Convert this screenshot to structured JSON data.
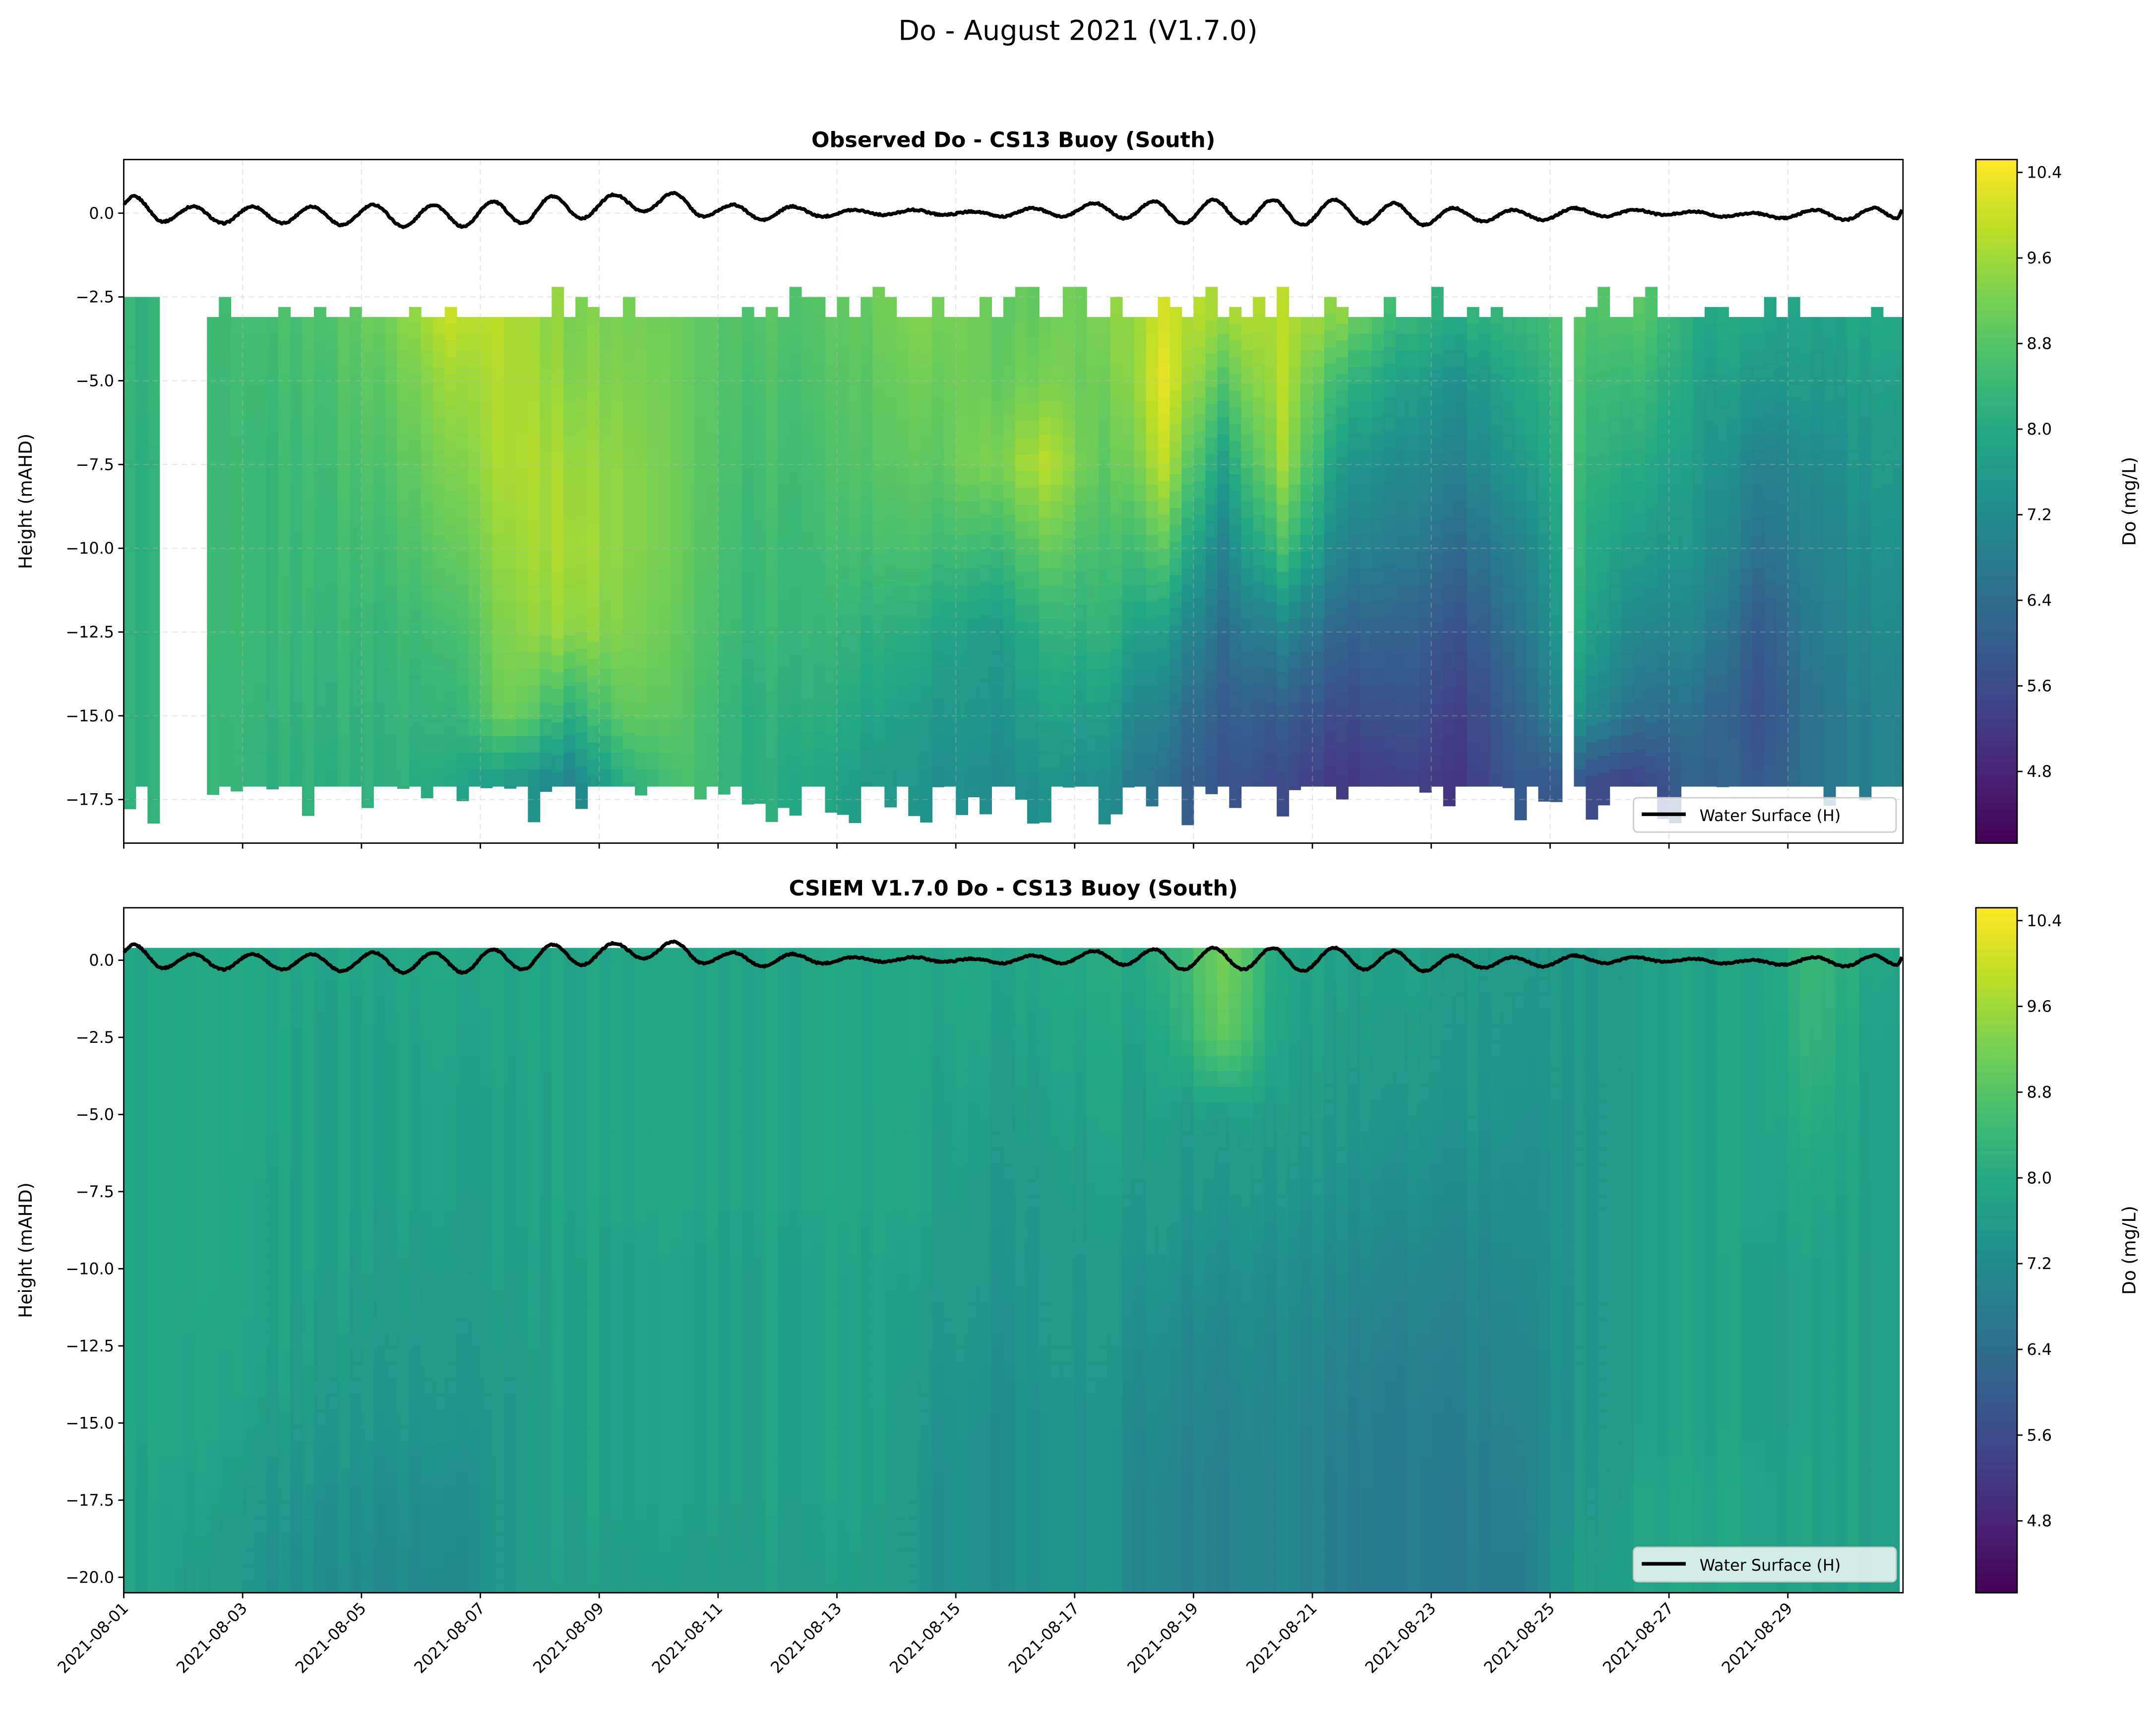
{
  "figure_title": "Do - August 2021 (V1.7.0)",
  "colormap": "viridis",
  "chart_data": [
    {
      "type": "heatmap",
      "title": "Observed Do - CS13 Buoy (South)",
      "ylabel": "Height (mAHD)",
      "xlabel": "",
      "colorbar_label": "Do (mg/L)",
      "colorbar_ticks": [
        "4.8",
        "5.6",
        "6.4",
        "7.2",
        "8.0",
        "8.8",
        "9.6",
        "10.4"
      ],
      "clim": [
        4.13,
        10.52
      ],
      "xlim": [
        "2021-08-01 00:00",
        "2021-08-30 22:30"
      ],
      "ylim": [
        -18.8,
        1.6
      ],
      "yticks": [
        "0.0",
        "-2.5",
        "-5.0",
        "-7.5",
        "-10.0",
        "-12.5",
        "-15.0",
        "-17.5"
      ],
      "grid": true,
      "legend": {
        "label": "Water Surface (H)",
        "placement": "lower-right"
      },
      "data_depth_range": [
        -17.1,
        -3.1
      ],
      "gaps": [
        [
          "2021-08-01 15:30",
          "2021-08-02 11:00"
        ],
        [
          "2021-08-25 05:00",
          "2021-08-25 10:00"
        ]
      ],
      "depths": [
        -3,
        -5,
        -7.5,
        -10,
        -12.5,
        -15,
        -17
      ],
      "days": [
        "2021-08-01",
        "2021-08-02",
        "2021-08-03",
        "2021-08-04",
        "2021-08-05",
        "2021-08-06",
        "2021-08-07",
        "2021-08-08",
        "2021-08-09",
        "2021-08-10",
        "2021-08-11",
        "2021-08-12",
        "2021-08-13",
        "2021-08-14",
        "2021-08-15",
        "2021-08-16",
        "2021-08-17",
        "2021-08-18",
        "2021-08-19",
        "2021-08-20",
        "2021-08-21",
        "2021-08-22",
        "2021-08-23",
        "2021-08-24",
        "2021-08-25",
        "2021-08-26",
        "2021-08-27",
        "2021-08-28",
        "2021-08-29",
        "2021-08-30"
      ],
      "values": [
        [
          8.3,
          8.3,
          8.2,
          8.2,
          8.2,
          8.2,
          8.2
        ],
        [
          8.4,
          8.4,
          8.4,
          8.4,
          8.4,
          8.3,
          8.3
        ],
        [
          8.6,
          8.5,
          8.4,
          8.4,
          8.4,
          8.3,
          8.2
        ],
        [
          8.8,
          8.7,
          8.6,
          8.5,
          8.4,
          8.3,
          8.2
        ],
        [
          9.2,
          9.0,
          8.8,
          8.6,
          8.4,
          8.3,
          8.2
        ],
        [
          10.0,
          9.6,
          9.3,
          9.0,
          8.6,
          8.3,
          8.0
        ],
        [
          9.8,
          9.8,
          9.8,
          9.6,
          9.4,
          9.2,
          7.6
        ],
        [
          9.3,
          9.4,
          9.6,
          9.7,
          9.5,
          8.2,
          7.0
        ],
        [
          9.2,
          9.3,
          9.4,
          9.4,
          9.3,
          9.0,
          8.2
        ],
        [
          9.0,
          9.0,
          9.0,
          9.0,
          8.9,
          8.8,
          8.7
        ],
        [
          8.8,
          8.7,
          8.6,
          8.5,
          8.4,
          8.2,
          8.2
        ],
        [
          8.8,
          8.7,
          8.6,
          8.5,
          8.4,
          8.2,
          8.0
        ],
        [
          9.0,
          8.9,
          8.8,
          8.6,
          8.2,
          7.9,
          7.6
        ],
        [
          9.3,
          9.1,
          8.9,
          8.6,
          8.0,
          7.6,
          7.4
        ],
        [
          9.0,
          9.0,
          9.2,
          8.4,
          7.6,
          7.4,
          7.2
        ],
        [
          9.0,
          9.2,
          9.8,
          9.0,
          8.2,
          7.8,
          7.4
        ],
        [
          9.2,
          9.0,
          8.8,
          8.5,
          8.2,
          7.6,
          7.2
        ],
        [
          10.0,
          10.2,
          9.8,
          8.8,
          7.6,
          6.8,
          6.4
        ],
        [
          9.6,
          8.8,
          7.8,
          7.0,
          6.4,
          6.0,
          5.8
        ],
        [
          9.8,
          9.8,
          9.6,
          8.6,
          7.0,
          6.0,
          5.6
        ],
        [
          9.4,
          8.4,
          7.6,
          7.0,
          6.2,
          5.6,
          5.2
        ],
        [
          8.4,
          7.8,
          7.2,
          6.8,
          6.2,
          5.8,
          5.4
        ],
        [
          8.2,
          7.4,
          7.0,
          6.4,
          5.8,
          5.4,
          5.2
        ],
        [
          8.4,
          8.0,
          7.6,
          7.0,
          6.6,
          6.2,
          6.0
        ],
        [
          8.8,
          8.6,
          8.4,
          8.2,
          8.0,
          7.4,
          5.8
        ],
        [
          8.8,
          8.4,
          8.0,
          7.6,
          7.0,
          6.4,
          5.4
        ],
        [
          8.0,
          7.8,
          7.6,
          7.4,
          7.0,
          6.4,
          6.2
        ],
        [
          8.0,
          7.6,
          7.0,
          6.6,
          6.0,
          5.8,
          6.0
        ],
        [
          7.8,
          7.6,
          7.2,
          7.0,
          6.8,
          6.6,
          6.6
        ],
        [
          8.0,
          7.8,
          7.6,
          7.4,
          7.2,
          7.0,
          7.0
        ]
      ]
    },
    {
      "type": "heatmap",
      "title": "CSIEM V1.7.0 Do - CS13 Buoy (South)",
      "ylabel": "Height (mAHD)",
      "xlabel": "",
      "colorbar_label": "Do (mg/L)",
      "colorbar_ticks": [
        "4.8",
        "5.6",
        "6.4",
        "7.2",
        "8.0",
        "8.8",
        "9.6",
        "10.4"
      ],
      "clim": [
        4.13,
        10.52
      ],
      "xlim": [
        "2021-08-01 00:00",
        "2021-08-30 22:30"
      ],
      "ylim": [
        -20.5,
        1.7
      ],
      "yticks": [
        "0.0",
        "-2.5",
        "-5.0",
        "-7.5",
        "-10.0",
        "-12.5",
        "-15.0",
        "-17.5",
        "-20.0"
      ],
      "xticks": [
        "2021-08-01",
        "2021-08-03",
        "2021-08-05",
        "2021-08-07",
        "2021-08-09",
        "2021-08-11",
        "2021-08-13",
        "2021-08-15",
        "2021-08-17",
        "2021-08-19",
        "2021-08-21",
        "2021-08-23",
        "2021-08-25",
        "2021-08-27",
        "2021-08-29"
      ],
      "grid": false,
      "legend": {
        "label": "Water Surface (H)",
        "placement": "lower-right"
      },
      "data_time_end": "2021-08-30 21:00",
      "depths": [
        0,
        -2.5,
        -5,
        -7.5,
        -10,
        -12.5,
        -15,
        -17.5,
        -20
      ],
      "days": [
        "2021-08-01",
        "2021-08-02",
        "2021-08-03",
        "2021-08-04",
        "2021-08-05",
        "2021-08-06",
        "2021-08-07",
        "2021-08-08",
        "2021-08-09",
        "2021-08-10",
        "2021-08-11",
        "2021-08-12",
        "2021-08-13",
        "2021-08-14",
        "2021-08-15",
        "2021-08-16",
        "2021-08-17",
        "2021-08-18",
        "2021-08-19",
        "2021-08-20",
        "2021-08-21",
        "2021-08-22",
        "2021-08-23",
        "2021-08-24",
        "2021-08-25",
        "2021-08-26",
        "2021-08-27",
        "2021-08-28",
        "2021-08-29",
        "2021-08-30"
      ],
      "values": [
        [
          7.9,
          7.9,
          7.9,
          7.9,
          7.9,
          7.9,
          7.9,
          7.8,
          7.8
        ],
        [
          7.9,
          7.9,
          7.9,
          7.9,
          7.9,
          7.8,
          7.8,
          7.7,
          7.6
        ],
        [
          7.9,
          7.9,
          7.9,
          7.8,
          7.8,
          7.8,
          7.7,
          7.5,
          7.4
        ],
        [
          7.9,
          7.8,
          7.8,
          7.8,
          7.8,
          7.7,
          7.6,
          7.4,
          7.3
        ],
        [
          7.9,
          7.8,
          7.8,
          7.8,
          7.7,
          7.6,
          7.5,
          7.3,
          7.2
        ],
        [
          8.0,
          7.9,
          7.8,
          7.8,
          7.7,
          7.6,
          7.5,
          7.3,
          7.2
        ],
        [
          7.9,
          7.9,
          7.8,
          7.8,
          7.8,
          7.7,
          7.6,
          7.6,
          7.6
        ],
        [
          7.9,
          7.9,
          7.9,
          7.9,
          7.8,
          7.8,
          7.8,
          7.8,
          7.7
        ],
        [
          7.9,
          7.9,
          7.9,
          7.9,
          7.8,
          7.8,
          7.8,
          7.8,
          7.7
        ],
        [
          7.9,
          7.9,
          7.9,
          7.9,
          7.8,
          7.8,
          7.8,
          7.8,
          7.7
        ],
        [
          7.9,
          7.9,
          7.9,
          7.9,
          7.8,
          7.8,
          7.8,
          7.8,
          7.7
        ],
        [
          7.9,
          7.9,
          7.9,
          7.9,
          7.8,
          7.8,
          7.8,
          7.8,
          7.7
        ],
        [
          7.9,
          7.9,
          7.9,
          7.9,
          7.8,
          7.8,
          7.8,
          7.8,
          7.7
        ],
        [
          7.9,
          7.9,
          7.8,
          7.8,
          7.7,
          7.6,
          7.5,
          7.4,
          7.4
        ],
        [
          7.9,
          7.8,
          7.7,
          7.6,
          7.5,
          7.4,
          7.3,
          7.3,
          7.3
        ],
        [
          7.9,
          7.8,
          7.7,
          7.6,
          7.5,
          7.5,
          7.4,
          7.4,
          7.4
        ],
        [
          8.0,
          7.9,
          7.8,
          7.7,
          7.6,
          7.5,
          7.4,
          7.4,
          7.4
        ],
        [
          8.1,
          7.9,
          7.7,
          7.6,
          7.4,
          7.2,
          7.1,
          7.0,
          7.0
        ],
        [
          9.2,
          9.0,
          7.7,
          7.5,
          7.3,
          7.1,
          7.0,
          6.9,
          6.9
        ],
        [
          7.9,
          7.8,
          7.7,
          7.5,
          7.3,
          7.2,
          7.1,
          7.1,
          7.1
        ],
        [
          7.8,
          7.7,
          7.6,
          7.4,
          7.2,
          7.0,
          6.9,
          6.8,
          6.8
        ],
        [
          7.8,
          7.7,
          7.5,
          7.3,
          7.1,
          6.9,
          6.8,
          6.8,
          6.8
        ],
        [
          7.7,
          7.6,
          7.5,
          7.3,
          7.1,
          7.0,
          6.9,
          6.8,
          6.8
        ],
        [
          7.6,
          7.5,
          7.4,
          7.3,
          7.2,
          7.1,
          7.0,
          6.9,
          6.8
        ],
        [
          7.6,
          7.6,
          7.5,
          7.5,
          7.5,
          7.5,
          7.5,
          7.6,
          7.7
        ],
        [
          7.7,
          7.7,
          7.7,
          7.7,
          7.7,
          7.7,
          7.7,
          7.8,
          7.8
        ],
        [
          7.8,
          7.8,
          7.8,
          7.8,
          7.8,
          7.8,
          7.8,
          7.9,
          7.9
        ],
        [
          7.9,
          7.9,
          7.9,
          7.9,
          7.8,
          7.8,
          7.8,
          7.9,
          7.9
        ],
        [
          8.4,
          8.3,
          8.1,
          7.9,
          7.8,
          7.8,
          7.8,
          7.8,
          7.8
        ],
        [
          7.9,
          7.8,
          7.8,
          7.8,
          7.8,
          7.8,
          7.8,
          7.8,
          7.8
        ]
      ]
    }
  ],
  "water_surface": {
    "name": "Water Surface (H)",
    "color": "#000000",
    "points": [
      [
        "2021-08-01 00:00",
        0.3
      ],
      [
        "2021-08-01 04:00",
        0.5
      ],
      [
        "2021-08-01 16:00",
        -0.25
      ],
      [
        "2021-08-02 04:00",
        0.2
      ],
      [
        "2021-08-02 16:00",
        -0.3
      ],
      [
        "2021-08-03 04:00",
        0.2
      ],
      [
        "2021-08-03 16:00",
        -0.3
      ],
      [
        "2021-08-04 04:00",
        0.2
      ],
      [
        "2021-08-04 16:00",
        -0.35
      ],
      [
        "2021-08-05 05:00",
        0.25
      ],
      [
        "2021-08-05 17:00",
        -0.4
      ],
      [
        "2021-08-06 05:00",
        0.25
      ],
      [
        "2021-08-06 17:00",
        -0.4
      ],
      [
        "2021-08-07 05:00",
        0.35
      ],
      [
        "2021-08-07 17:00",
        -0.3
      ],
      [
        "2021-08-08 05:00",
        0.5
      ],
      [
        "2021-08-08 17:00",
        -0.15
      ],
      [
        "2021-08-09 06:00",
        0.55
      ],
      [
        "2021-08-09 18:00",
        0.05
      ],
      [
        "2021-08-10 06:00",
        0.6
      ],
      [
        "2021-08-10 18:00",
        -0.1
      ],
      [
        "2021-08-11 06:00",
        0.25
      ],
      [
        "2021-08-11 18:00",
        -0.2
      ],
      [
        "2021-08-12 06:00",
        0.2
      ],
      [
        "2021-08-12 18:00",
        -0.1
      ],
      [
        "2021-08-13 07:00",
        0.1
      ],
      [
        "2021-08-13 19:00",
        -0.05
      ],
      [
        "2021-08-14 07:00",
        0.1
      ],
      [
        "2021-08-14 19:00",
        -0.05
      ],
      [
        "2021-08-15 07:00",
        0.05
      ],
      [
        "2021-08-15 19:00",
        -0.1
      ],
      [
        "2021-08-16 07:00",
        0.15
      ],
      [
        "2021-08-16 19:00",
        -0.1
      ],
      [
        "2021-08-17 08:00",
        0.3
      ],
      [
        "2021-08-17 20:00",
        -0.15
      ],
      [
        "2021-08-18 08:00",
        0.35
      ],
      [
        "2021-08-18 20:00",
        -0.3
      ],
      [
        "2021-08-19 08:00",
        0.4
      ],
      [
        "2021-08-19 20:00",
        -0.3
      ],
      [
        "2021-08-20 08:00",
        0.4
      ],
      [
        "2021-08-20 20:00",
        -0.35
      ],
      [
        "2021-08-21 09:00",
        0.4
      ],
      [
        "2021-08-21 21:00",
        -0.3
      ],
      [
        "2021-08-22 09:00",
        0.3
      ],
      [
        "2021-08-22 21:00",
        -0.35
      ],
      [
        "2021-08-23 09:00",
        0.15
      ],
      [
        "2021-08-23 21:00",
        -0.25
      ],
      [
        "2021-08-24 09:00",
        0.1
      ],
      [
        "2021-08-24 21:00",
        -0.2
      ],
      [
        "2021-08-25 10:00",
        0.15
      ],
      [
        "2021-08-25 22:00",
        -0.1
      ],
      [
        "2021-08-26 10:00",
        0.1
      ],
      [
        "2021-08-26 22:00",
        -0.05
      ],
      [
        "2021-08-27 10:00",
        0.05
      ],
      [
        "2021-08-27 22:00",
        -0.1
      ],
      [
        "2021-08-28 10:00",
        0.0
      ],
      [
        "2021-08-28 22:00",
        -0.15
      ],
      [
        "2021-08-29 11:00",
        0.1
      ],
      [
        "2021-08-29 23:00",
        -0.2
      ],
      [
        "2021-08-30 11:00",
        0.15
      ],
      [
        "2021-08-30 20:00",
        -0.15
      ],
      [
        "2021-08-30 22:30",
        0.1
      ]
    ]
  }
}
